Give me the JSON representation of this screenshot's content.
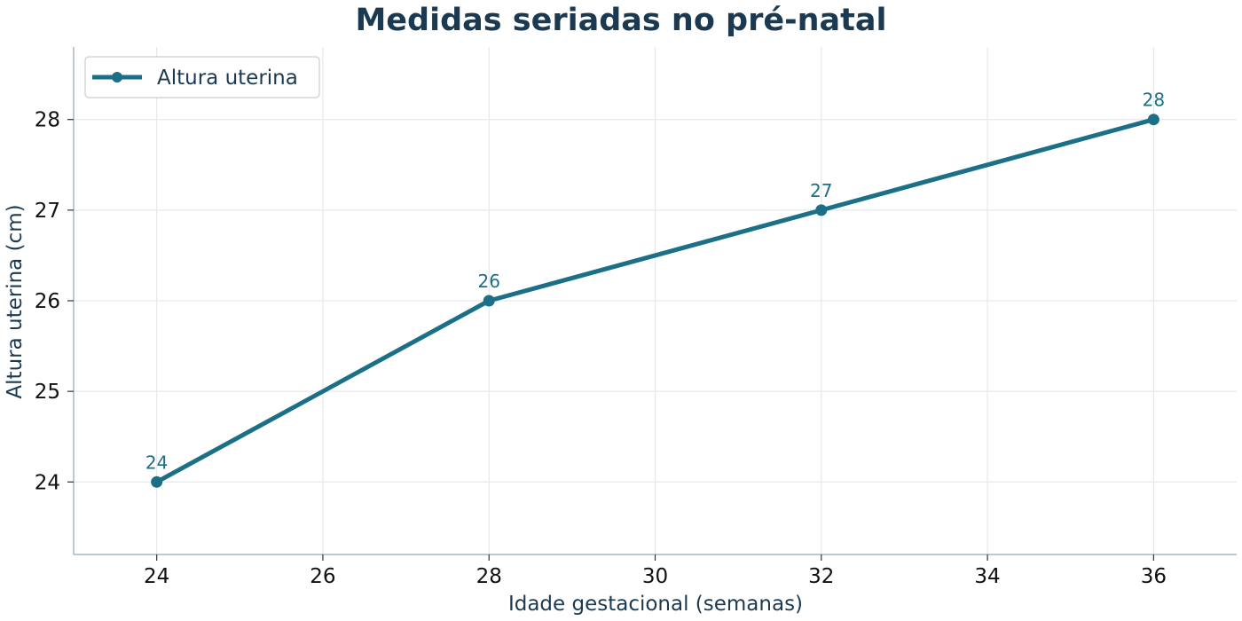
{
  "chart_data": {
    "type": "line",
    "title": "Medidas seriadas no pré-natal",
    "xlabel": "Idade gestacional (semanas)",
    "ylabel": "Altura uterina (cm)",
    "xlim": [
      23,
      37
    ],
    "ylim": [
      23.2,
      28.8
    ],
    "xticks": [
      24,
      26,
      28,
      30,
      32,
      34,
      36
    ],
    "yticks": [
      24,
      25,
      26,
      27,
      28
    ],
    "grid": true,
    "legend_position": "top-left",
    "series": [
      {
        "name": "Altura uterina",
        "color": "#1b6f87",
        "x": [
          24,
          28,
          32,
          36
        ],
        "y": [
          24,
          26,
          27,
          28
        ],
        "data_labels": [
          "24",
          "26",
          "27",
          "28"
        ]
      }
    ]
  }
}
